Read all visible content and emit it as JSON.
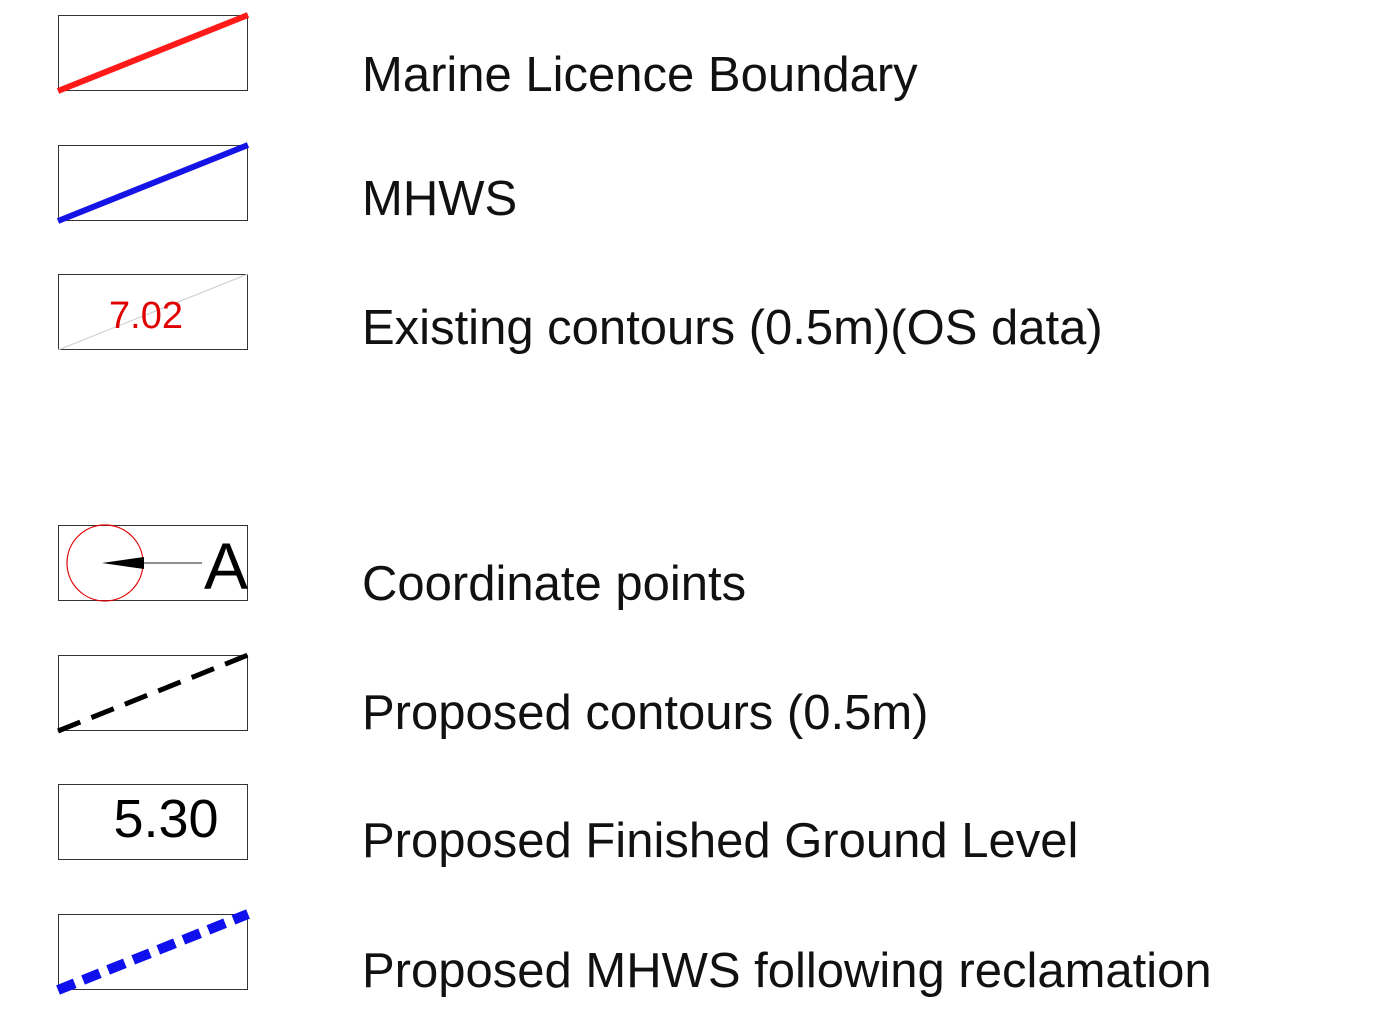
{
  "colors": {
    "boundary_red": "#ff1a1a",
    "mhws_blue": "#1414e6",
    "contour_red": "#e00000",
    "frame": "#333333",
    "dash_black": "#000000",
    "dash_blue": "#1010ee"
  },
  "legend": {
    "items": [
      {
        "key": "marine-licence-boundary",
        "label": "Marine Licence Boundary",
        "symbol": "red-solid-line"
      },
      {
        "key": "mhws",
        "label": "MHWS",
        "symbol": "blue-solid-line"
      },
      {
        "key": "existing-contours",
        "label": "Existing contours (0.5m)(OS data)",
        "symbol": "contour-label",
        "sample_value": "7.02"
      },
      {
        "key": "coordinate-points",
        "label": "Coordinate points",
        "symbol": "coordinate-marker",
        "marker_letter": "A"
      },
      {
        "key": "proposed-contours",
        "label": "Proposed contours (0.5m)",
        "symbol": "black-dashed-line"
      },
      {
        "key": "proposed-finished-ground-level",
        "label": "Proposed Finished Ground Level",
        "symbol": "level-value",
        "sample_value": "5.30"
      },
      {
        "key": "proposed-mhws-reclamation",
        "label": "Proposed MHWS following reclamation",
        "symbol": "blue-dashed-line"
      }
    ]
  }
}
